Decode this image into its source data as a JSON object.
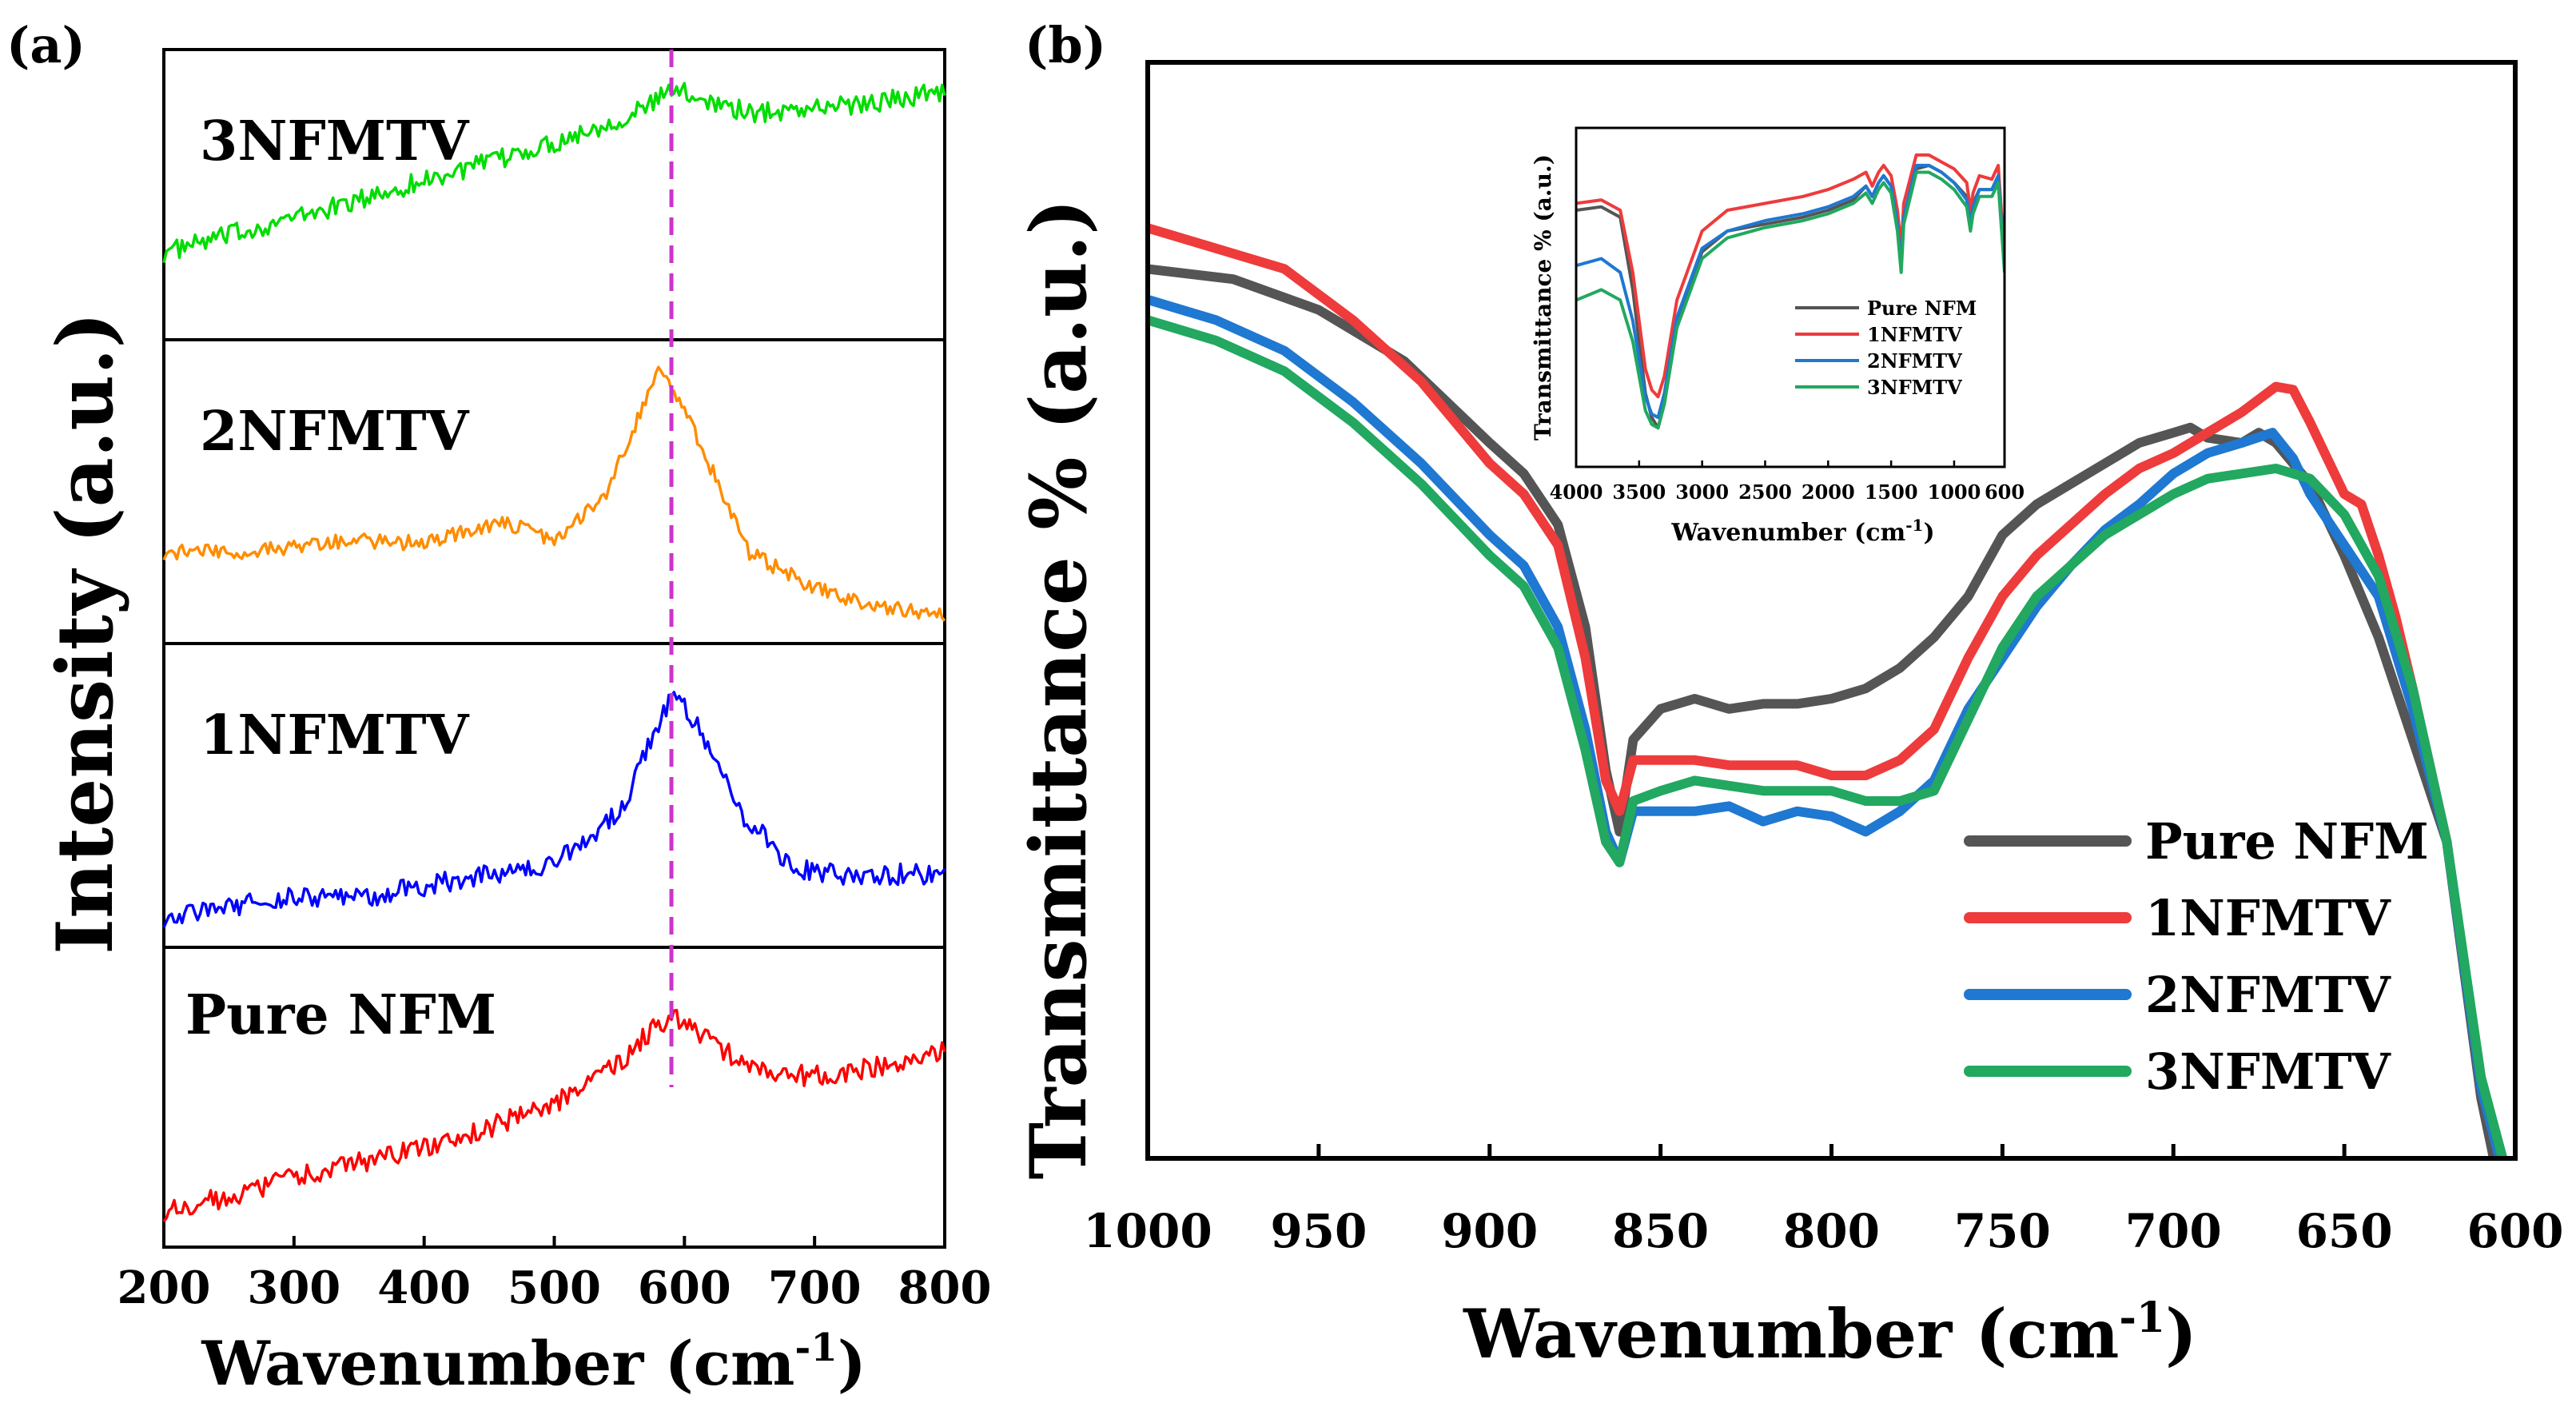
{
  "colors": {
    "pure": "#555555",
    "nf1": "#ee3b3b",
    "nf2": "#1f78d1",
    "nf3": "#22a860",
    "raman_pure": "#ff0000",
    "raman_1": "#0000ff",
    "raman_2": "#ff8c00",
    "raman_3": "#00dd00",
    "marker": "#cc33cc"
  },
  "chart_data": [
    {
      "id": "a",
      "type": "line",
      "panel_label": "(a)",
      "title": "",
      "xlabel": "Wavenumber (cm",
      "xlabel_sup": "-1",
      "xlabel_close": ")",
      "ylabel": "Intensity (a.u.)",
      "xlim": [
        200,
        800
      ],
      "xticks": [
        200,
        300,
        400,
        500,
        600,
        700,
        800
      ],
      "marker_x": 590,
      "stacked": true,
      "series": [
        {
          "name": "3NFMTV",
          "color_key": "raman_3",
          "x": [
            200,
            250,
            300,
            350,
            400,
            450,
            500,
            550,
            570,
            590,
            610,
            650,
            700,
            750,
            800
          ],
          "y": [
            0.3,
            0.36,
            0.42,
            0.48,
            0.55,
            0.61,
            0.68,
            0.76,
            0.8,
            0.86,
            0.84,
            0.78,
            0.8,
            0.82,
            0.86
          ],
          "noise": 0.035
        },
        {
          "name": "2NFMTV",
          "color_key": "raman_2",
          "x": [
            200,
            250,
            300,
            350,
            400,
            460,
            500,
            540,
            560,
            580,
            600,
            620,
            650,
            700,
            750,
            800
          ],
          "y": [
            0.3,
            0.3,
            0.32,
            0.34,
            0.33,
            0.4,
            0.34,
            0.5,
            0.7,
            0.9,
            0.78,
            0.58,
            0.3,
            0.18,
            0.12,
            0.1
          ],
          "noise": 0.025
        },
        {
          "name": "1NFMTV",
          "color_key": "raman_1",
          "x": [
            200,
            250,
            300,
            350,
            400,
            450,
            500,
            550,
            570,
            590,
            610,
            640,
            680,
            700,
            750,
            800
          ],
          "y": [
            0.1,
            0.13,
            0.17,
            0.16,
            0.2,
            0.24,
            0.28,
            0.44,
            0.64,
            0.83,
            0.74,
            0.46,
            0.28,
            0.24,
            0.24,
            0.24
          ],
          "noise": 0.035
        },
        {
          "name": "Pure NFM",
          "color_key": "raman_pure",
          "x": [
            200,
            250,
            300,
            350,
            400,
            450,
            500,
            550,
            580,
            600,
            620,
            660,
            700,
            750,
            800
          ],
          "y": [
            0.12,
            0.17,
            0.23,
            0.28,
            0.33,
            0.4,
            0.48,
            0.61,
            0.75,
            0.76,
            0.68,
            0.58,
            0.57,
            0.6,
            0.65
          ],
          "noise": 0.035
        }
      ]
    },
    {
      "id": "b",
      "type": "line",
      "panel_label": "(b)",
      "title": "",
      "xlabel": "Wavenumber (cm",
      "xlabel_sup": "-1",
      "xlabel_close": ")",
      "ylabel": "Transmittance % (a.u.)",
      "xlim": [
        1000,
        600
      ],
      "xticks": [
        1000,
        950,
        900,
        850,
        800,
        750,
        700,
        650,
        600
      ],
      "ylim": [
        0,
        100
      ],
      "legend": "right",
      "series": [
        {
          "name": "Pure NFM",
          "color_key": "pure",
          "x": [
            1000,
            975,
            950,
            925,
            900,
            890,
            880,
            872,
            866,
            862,
            858,
            850,
            840,
            830,
            820,
            810,
            800,
            790,
            780,
            770,
            760,
            750,
            740,
            730,
            720,
            710,
            700,
            695,
            690,
            680,
            675,
            670,
            660,
            650,
            640,
            630,
            620,
            610,
            605
          ],
          "y": [
            87,
            86,
            83,
            78,
            70,
            67,
            62,
            52,
            38,
            32,
            41,
            44,
            45,
            44,
            44.5,
            44.5,
            45,
            46,
            48,
            51,
            55,
            61,
            64,
            66,
            68,
            70,
            71,
            71.5,
            70.5,
            70,
            71,
            70,
            66,
            59,
            51,
            41,
            31,
            6,
            -2
          ]
        },
        {
          "name": "1NFMTV",
          "color_key": "nf1",
          "x": [
            1000,
            980,
            960,
            940,
            920,
            900,
            890,
            880,
            872,
            866,
            862,
            858,
            850,
            840,
            830,
            820,
            810,
            800,
            790,
            780,
            770,
            760,
            750,
            740,
            730,
            720,
            710,
            700,
            690,
            680,
            670,
            665,
            660,
            650,
            645,
            640,
            635,
            630,
            620,
            610,
            603
          ],
          "y": [
            91,
            89,
            87,
            82,
            76,
            68,
            65,
            60,
            49,
            37,
            34,
            39,
            39,
            39,
            38.5,
            38.5,
            38.5,
            37.5,
            37.5,
            39,
            42,
            49,
            55,
            59,
            62,
            65,
            67.5,
            69,
            71,
            73,
            75.5,
            75.2,
            72,
            65,
            64,
            59,
            53,
            46,
            31,
            7,
            -2
          ]
        },
        {
          "name": "2NFMTV",
          "color_key": "nf2",
          "x": [
            1000,
            980,
            960,
            940,
            920,
            900,
            890,
            880,
            872,
            866,
            862,
            858,
            850,
            840,
            830,
            820,
            810,
            800,
            790,
            780,
            770,
            760,
            750,
            740,
            730,
            720,
            710,
            700,
            690,
            680,
            671,
            665,
            660,
            650,
            640,
            630,
            620,
            610,
            603
          ],
          "y": [
            84,
            82,
            79,
            74,
            68,
            61,
            58,
            52,
            42,
            32,
            29,
            34,
            34,
            34,
            34.5,
            33,
            34,
            33.5,
            32,
            34,
            37,
            44,
            49,
            54,
            58,
            61.5,
            64,
            67,
            69,
            70,
            71,
            68.5,
            65,
            60,
            55,
            44,
            31,
            7,
            -2
          ]
        },
        {
          "name": "3NFMTV",
          "color_key": "nf3",
          "x": [
            1000,
            980,
            960,
            940,
            920,
            900,
            890,
            880,
            872,
            866,
            862,
            858,
            850,
            840,
            830,
            820,
            810,
            800,
            790,
            780,
            770,
            760,
            750,
            740,
            730,
            720,
            710,
            700,
            690,
            680,
            670,
            660,
            650,
            640,
            630,
            620,
            610,
            602
          ],
          "y": [
            82,
            80,
            77,
            72,
            66,
            59,
            56,
            50,
            40,
            31,
            29,
            35,
            36,
            37,
            36.5,
            36,
            36,
            36,
            35,
            35,
            36,
            43,
            50,
            55,
            58,
            61,
            63,
            65,
            66.5,
            67,
            67.5,
            66.5,
            63,
            57,
            46,
            31,
            8,
            -2
          ]
        }
      ]
    },
    {
      "id": "b-inset",
      "type": "line",
      "title": "",
      "xlabel": "Wavenumber (cm",
      "xlabel_sup": "-1",
      "xlabel_close": ")",
      "ylabel": "Transmittance % (a.u.)",
      "xlim": [
        4000,
        600
      ],
      "xticks": [
        4000,
        3500,
        3000,
        2500,
        2000,
        1500,
        1000,
        600
      ],
      "ylim": [
        0,
        100
      ],
      "legend": "center-right",
      "series": [
        {
          "name": "Pure NFM",
          "color_key": "pure",
          "x": [
            4000,
            3800,
            3650,
            3550,
            3450,
            3400,
            3350,
            3300,
            3200,
            3000,
            2800,
            2500,
            2200,
            2000,
            1800,
            1700,
            1650,
            1600,
            1560,
            1500,
            1450,
            1420,
            1400,
            1300,
            1200,
            1100,
            1000,
            900,
            870,
            850,
            800,
            700,
            650,
            600
          ],
          "y": [
            78,
            79,
            76,
            55,
            25,
            18,
            15,
            22,
            45,
            66,
            72,
            74,
            76,
            78,
            81,
            85,
            82,
            86,
            88,
            85,
            75,
            63,
            76,
            90,
            91,
            89,
            86,
            82,
            75,
            80,
            84,
            84,
            88,
            62
          ]
        },
        {
          "name": "1NFMTV",
          "color_key": "nf1",
          "x": [
            4000,
            3800,
            3650,
            3550,
            3450,
            3400,
            3350,
            3300,
            3200,
            3000,
            2800,
            2500,
            2200,
            2000,
            1800,
            1700,
            1650,
            1600,
            1560,
            1500,
            1450,
            1420,
            1400,
            1300,
            1200,
            1100,
            1000,
            900,
            870,
            850,
            800,
            700,
            650,
            600
          ],
          "y": [
            80,
            81,
            78,
            60,
            32,
            26,
            24,
            30,
            52,
            72,
            78,
            80,
            82,
            84,
            87,
            89,
            85,
            89,
            91,
            88,
            78,
            67,
            80,
            94,
            94,
            92,
            90,
            86,
            78,
            83,
            88,
            87,
            91,
            64
          ]
        },
        {
          "name": "2NFMTV",
          "color_key": "nf2",
          "x": [
            4000,
            3800,
            3650,
            3550,
            3450,
            3400,
            3350,
            3300,
            3200,
            3000,
            2800,
            2500,
            2200,
            2000,
            1800,
            1700,
            1650,
            1600,
            1560,
            1500,
            1450,
            1420,
            1400,
            1300,
            1200,
            1100,
            1000,
            900,
            870,
            850,
            800,
            700,
            650,
            600
          ],
          "y": [
            62,
            64,
            60,
            46,
            24,
            19,
            18,
            25,
            47,
            67,
            72,
            75,
            77,
            79,
            82,
            85,
            82,
            86,
            88,
            85,
            74,
            62,
            76,
            91,
            91,
            89,
            86,
            81,
            74,
            79,
            84,
            84,
            88,
            62
          ]
        },
        {
          "name": "3NFMTV",
          "color_key": "nf3",
          "x": [
            4000,
            3800,
            3650,
            3550,
            3450,
            3400,
            3350,
            3300,
            3200,
            3000,
            2800,
            2500,
            2200,
            2000,
            1800,
            1700,
            1650,
            1600,
            1560,
            1500,
            1450,
            1420,
            1400,
            1300,
            1200,
            1100,
            1000,
            900,
            870,
            850,
            800,
            700,
            650,
            600
          ],
          "y": [
            52,
            55,
            52,
            40,
            20,
            16,
            15,
            22,
            44,
            64,
            70,
            73,
            75,
            77,
            80,
            83,
            80,
            84,
            86,
            83,
            72,
            60,
            74,
            89,
            89,
            87,
            84,
            79,
            72,
            77,
            82,
            82,
            86,
            60
          ]
        }
      ]
    }
  ]
}
